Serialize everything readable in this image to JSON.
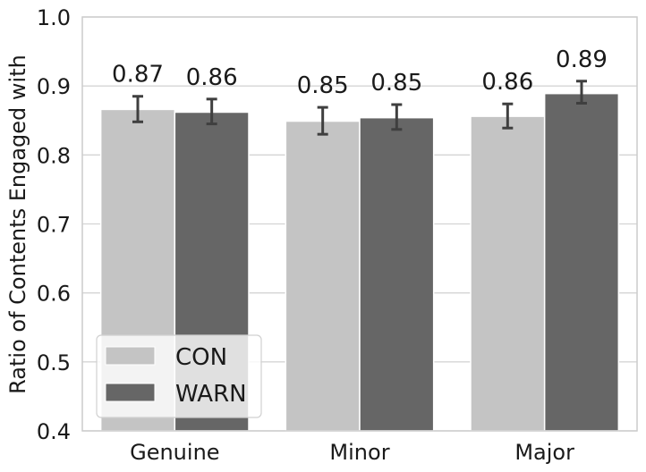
{
  "chart_data": {
    "type": "bar",
    "categories": [
      "Genuine",
      "Minor",
      "Major"
    ],
    "series": [
      {
        "name": "CON",
        "color": "#c4c4c4",
        "values": [
          0.866,
          0.849,
          0.856
        ],
        "err_low": [
          0.848,
          0.83,
          0.839
        ],
        "err_high": [
          0.885,
          0.869,
          0.874
        ],
        "labels": [
          "0.87",
          "0.85",
          "0.86"
        ]
      },
      {
        "name": "WARN",
        "color": "#666666",
        "values": [
          0.862,
          0.854,
          0.889
        ],
        "err_low": [
          0.845,
          0.837,
          0.875
        ],
        "err_high": [
          0.881,
          0.873,
          0.907
        ],
        "labels": [
          "0.86",
          "0.85",
          "0.89"
        ]
      }
    ],
    "ylabel": "Ratio of Contents Engaged with",
    "xlabel": "",
    "ylim": [
      0.4,
      1.0
    ],
    "yticks": [
      "0.4",
      "0.5",
      "0.6",
      "0.7",
      "0.8",
      "0.9",
      "1.0"
    ],
    "grid": true,
    "legend_position": "lower-left"
  }
}
